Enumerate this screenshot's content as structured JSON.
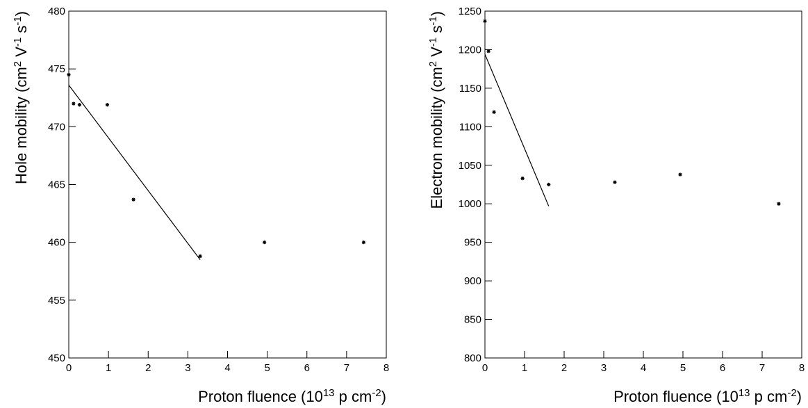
{
  "chart_data": [
    {
      "type": "scatter",
      "xlabel": [
        "Proton fluence (10",
        "13",
        " p cm",
        "-2",
        ")"
      ],
      "ylabel": [
        "Hole mobility (cm",
        "2",
        " V",
        "-1",
        " s",
        "-1",
        ")"
      ],
      "points": {
        "x": [
          0,
          0.12,
          0.27,
          0.97,
          1.63,
          3.31,
          4.93,
          7.43
        ],
        "y": [
          474.5,
          472.0,
          471.9,
          471.9,
          463.7,
          458.8,
          460.0,
          460.0
        ]
      },
      "fit_line": {
        "x": [
          0,
          3.31
        ],
        "y": [
          473.6,
          458.5
        ]
      },
      "xlim": [
        0,
        8
      ],
      "xticks": [
        0,
        1,
        2,
        3,
        4,
        5,
        6,
        7,
        8
      ],
      "ylim": [
        450,
        480
      ],
      "yticks": [
        450,
        455,
        460,
        465,
        470,
        475,
        480
      ]
    },
    {
      "type": "scatter",
      "xlabel": [
        "Proton fluence (10",
        "13",
        " p cm",
        "-2",
        ")"
      ],
      "ylabel": [
        "Electron mobility (cm",
        "2",
        " V",
        "-1",
        " s",
        "-1",
        ")"
      ],
      "points": {
        "x": [
          0,
          0.09,
          0.23,
          0.95,
          1.61,
          3.28,
          4.93,
          7.42
        ],
        "y": [
          1237,
          1198,
          1119,
          1033,
          1025,
          1028,
          1038,
          1000
        ]
      },
      "fit_line": {
        "x": [
          0,
          1.61
        ],
        "y": [
          1194,
          997
        ]
      },
      "xlim": [
        0,
        8
      ],
      "xticks": [
        0,
        1,
        2,
        3,
        4,
        5,
        6,
        7,
        8
      ],
      "ylim": [
        800,
        1250
      ],
      "yticks": [
        800,
        850,
        900,
        950,
        1000,
        1050,
        1100,
        1150,
        1200,
        1250
      ]
    }
  ]
}
